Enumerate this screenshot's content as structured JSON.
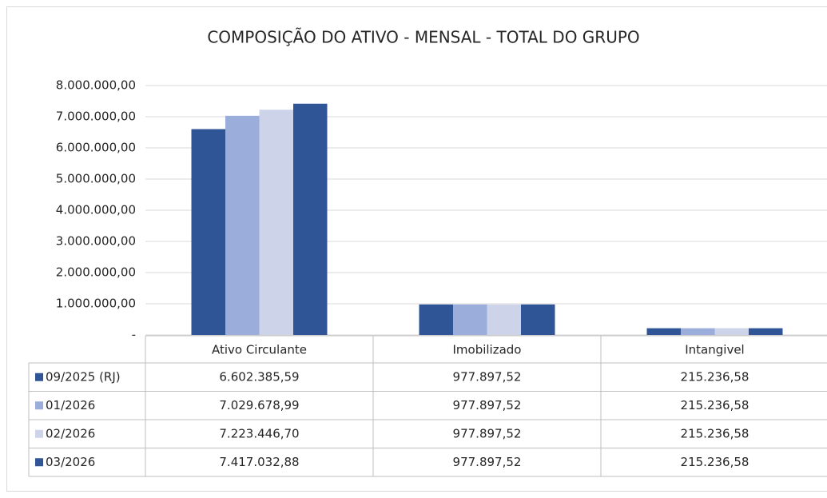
{
  "chart_data": {
    "type": "bar",
    "title": "COMPOSIÇÃO DO ATIVO - MENSAL - TOTAL DO GRUPO",
    "categories": [
      "Ativo Circulante",
      "Imobilizado",
      "Intangivel"
    ],
    "series": [
      {
        "name": "09/2025 (RJ)",
        "color": "#2f5597",
        "values": [
          6602385.59,
          977897.52,
          215236.58
        ],
        "value_labels": [
          "6.602.385,59",
          "977.897,52",
          "215.236,58"
        ]
      },
      {
        "name": "01/2026",
        "color": "#9aaddb",
        "values": [
          7029678.99,
          977897.52,
          215236.58
        ],
        "value_labels": [
          "7.029.678,99",
          "977.897,52",
          "215.236,58"
        ]
      },
      {
        "name": "02/2026",
        "color": "#cdd4ea",
        "values": [
          7223446.7,
          977897.52,
          215236.58
        ],
        "value_labels": [
          "7.223.446,70",
          "977.897,52",
          "215.236,58"
        ]
      },
      {
        "name": "03/2026",
        "color": "#2f5597",
        "values": [
          7417032.88,
          977897.52,
          215236.58
        ],
        "value_labels": [
          "7.417.032,88",
          "977.897,52",
          "215.236,58"
        ]
      }
    ],
    "ylim": [
      0,
      8000000
    ],
    "yticks": [
      {
        "value": 0,
        "label": "-"
      },
      {
        "value": 1000000,
        "label": "1.000.000,00"
      },
      {
        "value": 2000000,
        "label": "2.000.000,00"
      },
      {
        "value": 3000000,
        "label": "3.000.000,00"
      },
      {
        "value": 4000000,
        "label": "4.000.000,00"
      },
      {
        "value": 5000000,
        "label": "5.000.000,00"
      },
      {
        "value": 6000000,
        "label": "6.000.000,00"
      },
      {
        "value": 7000000,
        "label": "7.000.000,00"
      },
      {
        "value": 8000000,
        "label": "8.000.000,00"
      }
    ],
    "grid": true
  }
}
